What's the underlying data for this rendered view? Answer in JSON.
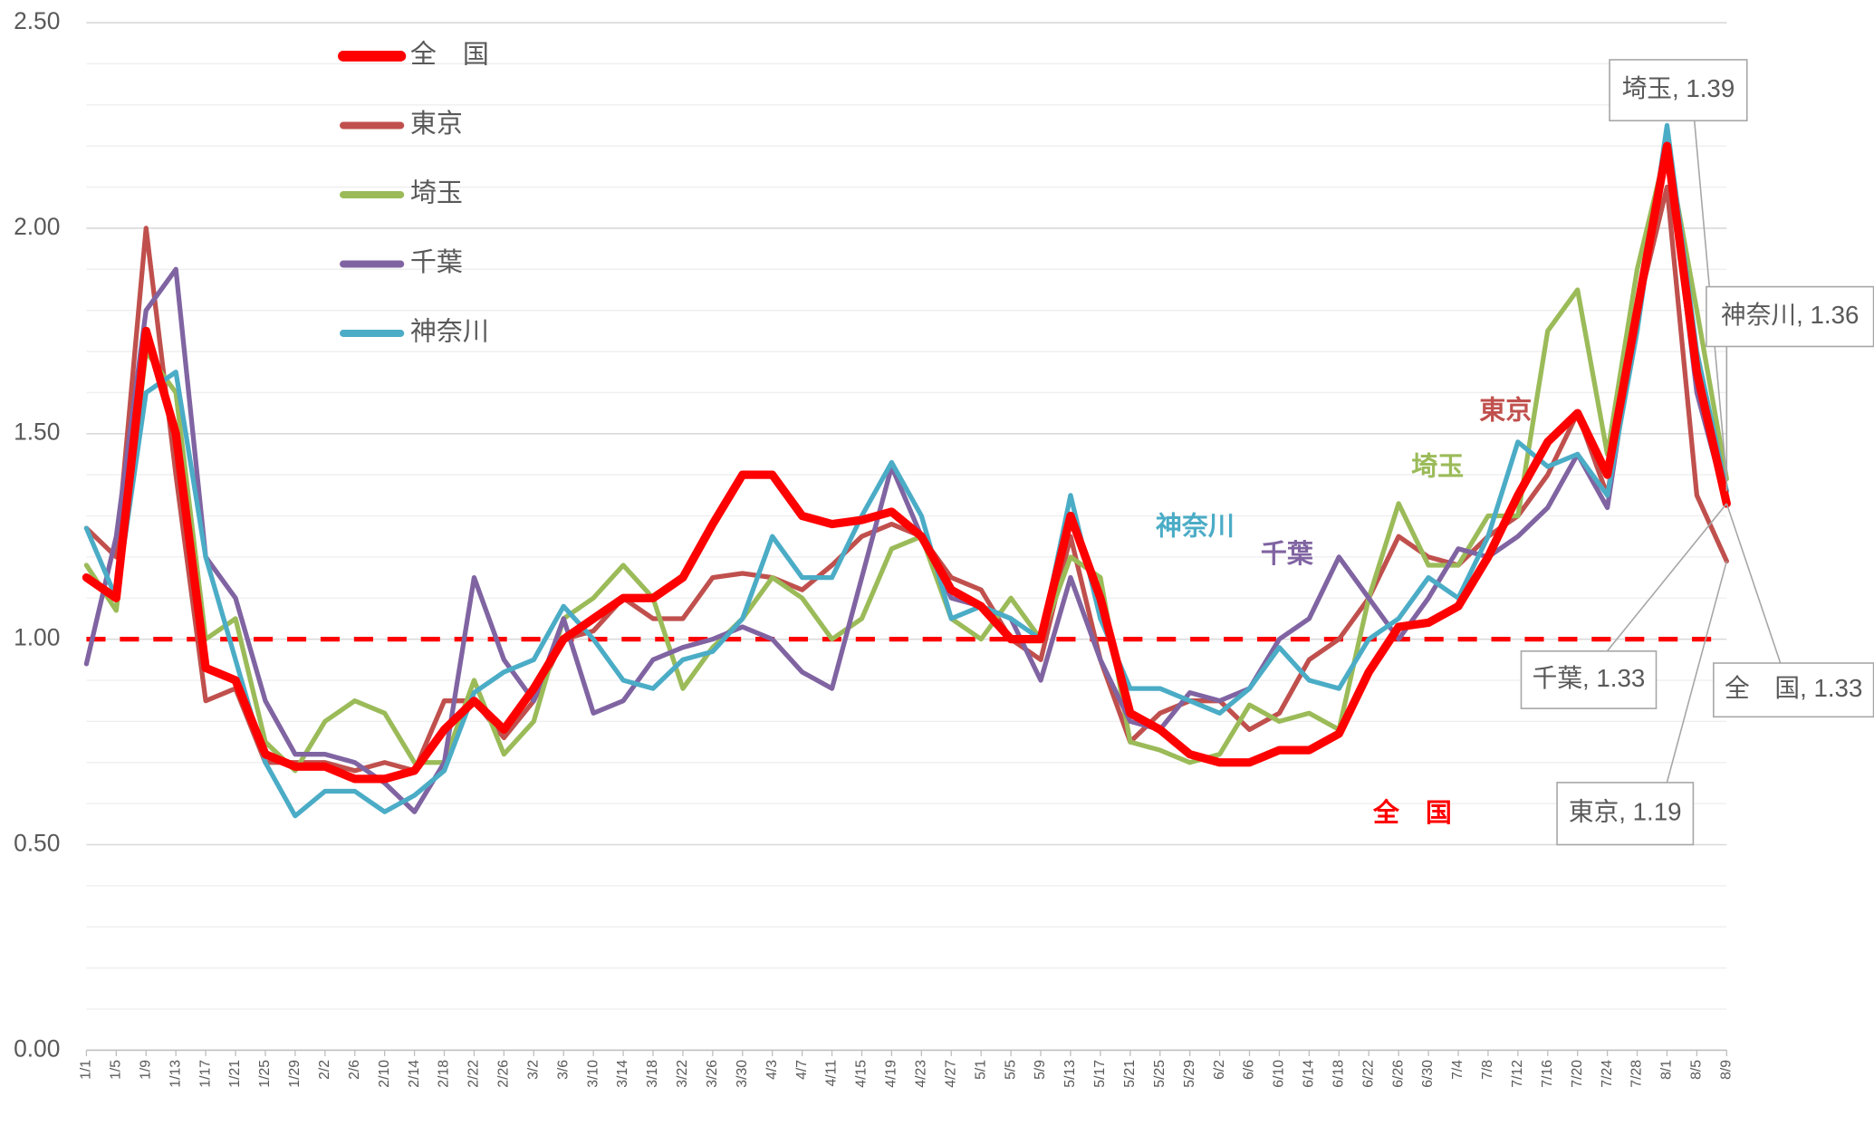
{
  "chart_data": {
    "type": "line",
    "categories": [
      "1/1",
      "1/5",
      "1/9",
      "1/13",
      "1/17",
      "1/21",
      "1/25",
      "1/29",
      "2/2",
      "2/6",
      "2/10",
      "2/14",
      "2/18",
      "2/22",
      "2/26",
      "3/2",
      "3/6",
      "3/10",
      "3/14",
      "3/18",
      "3/22",
      "3/26",
      "3/30",
      "4/3",
      "4/7",
      "4/11",
      "4/15",
      "4/19",
      "4/23",
      "4/27",
      "5/1",
      "5/5",
      "5/9",
      "5/13",
      "5/17",
      "5/21",
      "5/25",
      "5/29",
      "6/2",
      "6/6",
      "6/10",
      "6/14",
      "6/18",
      "6/22",
      "6/26",
      "6/30",
      "7/4",
      "7/8",
      "7/12",
      "7/16",
      "7/20",
      "7/24",
      "7/28",
      "8/1",
      "8/5",
      "8/9"
    ],
    "series": [
      {
        "name": "全　国",
        "color": "#ff0000",
        "width": 7,
        "end_label": "全　国, 1.33",
        "values": [
          1.15,
          1.1,
          1.75,
          1.5,
          0.93,
          0.9,
          0.72,
          0.69,
          0.69,
          0.66,
          0.66,
          0.68,
          0.78,
          0.85,
          0.78,
          0.88,
          1.0,
          1.05,
          1.1,
          1.1,
          1.15,
          1.28,
          1.4,
          1.4,
          1.3,
          1.28,
          1.29,
          1.31,
          1.25,
          1.12,
          1.08,
          1.0,
          1.0,
          1.3,
          1.1,
          0.82,
          0.78,
          0.72,
          0.7,
          0.7,
          0.73,
          0.73,
          0.77,
          0.92,
          1.03,
          1.04,
          1.08,
          1.2,
          1.35,
          1.48,
          1.55,
          1.4,
          1.8,
          2.2,
          1.65,
          1.33
        ]
      },
      {
        "name": "東京",
        "color": "#c0504d",
        "width": 4,
        "end_label": "東京, 1.19",
        "values": [
          1.27,
          1.2,
          2.0,
          1.4,
          0.85,
          0.88,
          0.7,
          0.7,
          0.7,
          0.68,
          0.7,
          0.68,
          0.85,
          0.85,
          0.76,
          0.85,
          1.0,
          1.02,
          1.1,
          1.05,
          1.05,
          1.15,
          1.16,
          1.15,
          1.12,
          1.18,
          1.25,
          1.28,
          1.25,
          1.15,
          1.12,
          1.0,
          0.95,
          1.25,
          0.95,
          0.75,
          0.82,
          0.85,
          0.85,
          0.78,
          0.82,
          0.95,
          1.0,
          1.1,
          1.25,
          1.2,
          1.18,
          1.25,
          1.3,
          1.4,
          1.55,
          1.35,
          1.8,
          2.1,
          1.35,
          1.19
        ]
      },
      {
        "name": "埼玉",
        "color": "#9bbb59",
        "width": 4,
        "end_label": "埼玉, 1.39",
        "values": [
          1.18,
          1.07,
          1.7,
          1.6,
          1.0,
          1.05,
          0.75,
          0.68,
          0.8,
          0.85,
          0.82,
          0.7,
          0.7,
          0.9,
          0.72,
          0.8,
          1.05,
          1.1,
          1.18,
          1.1,
          0.88,
          0.98,
          1.05,
          1.15,
          1.1,
          1.0,
          1.05,
          1.22,
          1.25,
          1.05,
          1.0,
          1.1,
          1.0,
          1.2,
          1.15,
          0.75,
          0.73,
          0.7,
          0.72,
          0.84,
          0.8,
          0.82,
          0.78,
          1.1,
          1.33,
          1.18,
          1.18,
          1.3,
          1.3,
          1.75,
          1.85,
          1.45,
          1.9,
          2.2,
          1.8,
          1.39
        ]
      },
      {
        "name": "千葉",
        "color": "#8064a2",
        "width": 4,
        "end_label": "千葉, 1.33",
        "values": [
          0.94,
          1.25,
          1.8,
          1.9,
          1.2,
          1.1,
          0.85,
          0.72,
          0.72,
          0.7,
          0.65,
          0.58,
          0.7,
          1.15,
          0.95,
          0.85,
          1.05,
          0.82,
          0.85,
          0.95,
          0.98,
          1.0,
          1.03,
          1.0,
          0.92,
          0.88,
          1.15,
          1.42,
          1.25,
          1.1,
          1.08,
          1.05,
          0.9,
          1.15,
          0.95,
          0.8,
          0.78,
          0.87,
          0.85,
          0.88,
          1.0,
          1.05,
          1.2,
          1.1,
          1.0,
          1.1,
          1.22,
          1.2,
          1.25,
          1.32,
          1.45,
          1.32,
          1.8,
          2.2,
          1.6,
          1.33
        ]
      },
      {
        "name": "神奈川",
        "color": "#4bacc6",
        "width": 4,
        "end_label": "神奈川, 1.36",
        "values": [
          1.27,
          1.1,
          1.6,
          1.65,
          1.2,
          0.95,
          0.7,
          0.57,
          0.63,
          0.63,
          0.58,
          0.62,
          0.68,
          0.87,
          0.92,
          0.95,
          1.08,
          1.0,
          0.9,
          0.88,
          0.95,
          0.97,
          1.05,
          1.25,
          1.15,
          1.15,
          1.3,
          1.43,
          1.3,
          1.05,
          1.08,
          1.05,
          1.0,
          1.35,
          1.05,
          0.88,
          0.88,
          0.85,
          0.82,
          0.88,
          0.98,
          0.9,
          0.88,
          1.0,
          1.05,
          1.15,
          1.1,
          1.25,
          1.48,
          1.42,
          1.45,
          1.35,
          1.75,
          2.25,
          1.7,
          1.36
        ]
      }
    ],
    "ylim": [
      0,
      2.5
    ],
    "yticks": [
      {
        "value": 0,
        "label": "0.00"
      },
      {
        "value": 0.5,
        "label": "0.50"
      },
      {
        "value": 1,
        "label": "1.00"
      },
      {
        "value": 1.5,
        "label": "1.50"
      },
      {
        "value": 2,
        "label": "2.00"
      },
      {
        "value": 2.5,
        "label": "2.50"
      }
    ],
    "yminor": [
      0.1,
      0.2,
      0.3,
      0.4,
      0.6,
      0.7,
      0.8,
      0.9,
      1.1,
      1.2,
      1.3,
      1.4,
      1.6,
      1.7,
      1.8,
      1.9,
      2.1,
      2.2,
      2.3,
      2.4
    ],
    "reference_line": {
      "value": 1,
      "color": "#ff0000"
    },
    "grid": true,
    "legend": "upper left"
  }
}
